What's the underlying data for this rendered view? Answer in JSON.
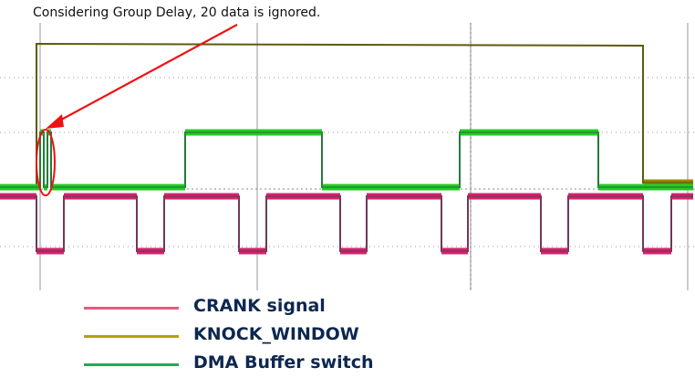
{
  "annotation": {
    "text": "Considering Group Delay, 20 data is ignored.",
    "arrow_color": "#ee1111"
  },
  "legend": [
    {
      "label": "CRANK signal",
      "color": "#e85a7a"
    },
    {
      "label": "KNOCK_WINDOW",
      "color": "#b8a000"
    },
    {
      "label": "DMA Buffer switch",
      "color": "#22aa55"
    }
  ],
  "chart_data": {
    "type": "line",
    "grid": true,
    "title": "",
    "xlabel": "",
    "ylabel": "",
    "xlim": [
      0,
      760
    ],
    "series": [
      {
        "name": "CRANK signal",
        "color": "#d4226e",
        "shadow_color": "#6e3a55",
        "points": [
          [
            0,
            215
          ],
          [
            40,
            215
          ],
          [
            40,
            275
          ],
          [
            70,
            275
          ],
          [
            70,
            215
          ],
          [
            150,
            215
          ],
          [
            150,
            275
          ],
          [
            180,
            275
          ],
          [
            180,
            215
          ],
          [
            262,
            215
          ],
          [
            262,
            275
          ],
          [
            292,
            275
          ],
          [
            292,
            215
          ],
          [
            373,
            215
          ],
          [
            373,
            275
          ],
          [
            402,
            275
          ],
          [
            402,
            215
          ],
          [
            484,
            215
          ],
          [
            484,
            275
          ],
          [
            513,
            275
          ],
          [
            513,
            215
          ],
          [
            593,
            215
          ],
          [
            593,
            275
          ],
          [
            623,
            275
          ],
          [
            623,
            215
          ],
          [
            705,
            215
          ],
          [
            705,
            275
          ],
          [
            736,
            275
          ],
          [
            736,
            215
          ],
          [
            760,
            215
          ]
        ]
      },
      {
        "name": "KNOCK_WINDOW",
        "color": "#9a8600",
        "shadow_color": "#5f5a10",
        "points": [
          [
            0,
            205
          ],
          [
            40,
            205
          ],
          [
            40,
            48
          ],
          [
            705,
            50
          ],
          [
            705,
            200
          ],
          [
            760,
            200
          ]
        ]
      },
      {
        "name": "DMA Buffer switch",
        "color": "#22cc22",
        "shadow_color": "#267a3a",
        "points": [
          [
            0,
            205
          ],
          [
            44,
            205
          ],
          [
            44,
            145
          ],
          [
            48,
            145
          ],
          [
            48,
            205
          ],
          [
            52,
            205
          ],
          [
            52,
            145
          ],
          [
            56,
            145
          ],
          [
            56,
            205
          ],
          [
            203,
            205
          ],
          [
            203,
            145
          ],
          [
            353,
            145
          ],
          [
            353,
            205
          ],
          [
            504,
            205
          ],
          [
            504,
            145
          ],
          [
            656,
            145
          ],
          [
            656,
            205
          ],
          [
            760,
            205
          ]
        ]
      }
    ]
  }
}
